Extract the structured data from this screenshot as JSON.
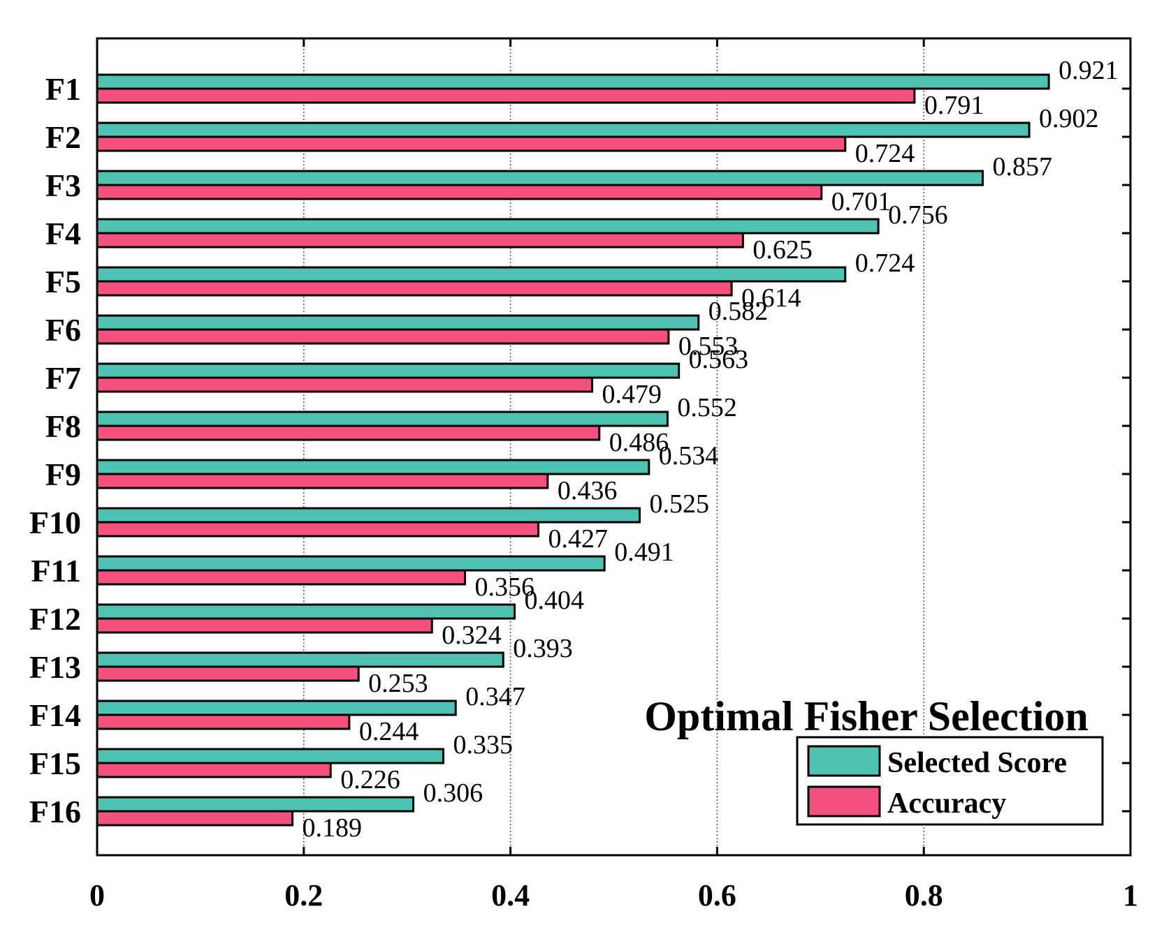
{
  "chart_data": {
    "type": "bar",
    "orientation": "horizontal",
    "title": "Optimal Fisher Selection",
    "categories": [
      "F1",
      "F2",
      "F3",
      "F4",
      "F5",
      "F6",
      "F7",
      "F8",
      "F9",
      "F10",
      "F11",
      "F12",
      "F13",
      "F14",
      "F15",
      "F16"
    ],
    "series": [
      {
        "name": "Selected Score",
        "color": "#4ec3b4",
        "values": [
          0.921,
          0.902,
          0.857,
          0.756,
          0.724,
          0.582,
          0.563,
          0.552,
          0.534,
          0.525,
          0.491,
          0.404,
          0.393,
          0.347,
          0.335,
          0.306
        ],
        "labels": [
          "0.921",
          "0.902",
          "0.857",
          "0.756",
          "0.724",
          "0.582",
          "0.563",
          "0.552",
          "0.534",
          "0.525",
          "0.491",
          "0.404",
          "0.393",
          "0.347",
          "0.335",
          "0.306"
        ]
      },
      {
        "name": "Accuracy",
        "color": "#f5517f",
        "values": [
          0.791,
          0.724,
          0.701,
          0.625,
          0.614,
          0.553,
          0.479,
          0.486,
          0.436,
          0.427,
          0.356,
          0.324,
          0.253,
          0.244,
          0.226,
          0.189
        ],
        "labels": [
          "0.791",
          "0.724",
          "0.701",
          "0.625",
          "0.614",
          "0.553",
          "0.479",
          "0.486",
          "0.436",
          "0.427",
          "0.356",
          "0.324",
          "0.253",
          "0.244",
          "0.226",
          "0.189"
        ]
      }
    ],
    "xlim": [
      0,
      1
    ],
    "xticks": [
      0,
      0.2,
      0.4,
      0.6,
      0.8,
      1
    ],
    "xtick_labels": [
      "0",
      "0.2",
      "0.4",
      "0.6",
      "0.8",
      "1"
    ],
    "xlabel": "",
    "ylabel": "",
    "grid": "vertical-dotted",
    "legend": "bottom-right"
  }
}
